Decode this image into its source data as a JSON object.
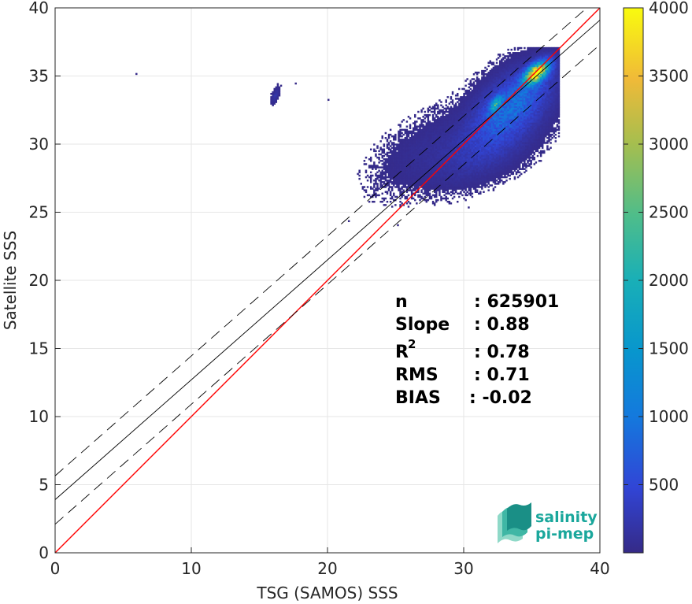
{
  "chart_data": {
    "type": "heatmap",
    "title": "",
    "xlabel": "TSG (SAMOS) SSS",
    "ylabel": "Satellite SSS",
    "xlim": [
      0,
      40
    ],
    "ylim": [
      0,
      40
    ],
    "xticks": [
      "0",
      "10",
      "20",
      "30",
      "40"
    ],
    "yticks": [
      "0",
      "5",
      "10",
      "15",
      "20",
      "25",
      "30",
      "35",
      "40"
    ],
    "grid": true,
    "colorbar": {
      "range": [
        0,
        4000
      ],
      "ticks": [
        "500",
        "1000",
        "1500",
        "2000",
        "2500",
        "3000",
        "3500",
        "4000"
      ],
      "colormap": "parula"
    },
    "lines": [
      {
        "type": "identity",
        "slope": 1.0,
        "intercept": 0.0,
        "color": "#ff0000",
        "style": "solid"
      },
      {
        "type": "regression",
        "slope": 0.88,
        "intercept": 3.9,
        "color": "#000000",
        "style": "solid"
      },
      {
        "type": "regression-upper",
        "slope": 0.88,
        "intercept": 5.65,
        "color": "#000000",
        "style": "dashed"
      },
      {
        "type": "regression-lower",
        "slope": 0.88,
        "intercept": 2.1,
        "color": "#000000",
        "style": "dashed"
      }
    ],
    "density_clusters": [
      {
        "x": 33.5,
        "y": 32.8,
        "sx": 1.5,
        "sy": 1.4,
        "peak": 900
      },
      {
        "x": 35.3,
        "y": 35.2,
        "sx": 0.5,
        "sy": 0.45,
        "peak": 3800
      },
      {
        "x": 32.3,
        "y": 32.9,
        "sx": 0.25,
        "sy": 0.3,
        "peak": 1600
      },
      {
        "x": 31.5,
        "y": 29.5,
        "sx": 1.8,
        "sy": 1.2,
        "peak": 250
      },
      {
        "x": 27.5,
        "y": 29.5,
        "sx": 2.0,
        "sy": 1.5,
        "peak": 80
      },
      {
        "x": 16.1,
        "y": 33.5,
        "sx": 0.15,
        "sy": 0.3,
        "peak": 200
      }
    ],
    "isolated_points": [
      {
        "x": 5.9,
        "y": 35.1
      },
      {
        "x": 17.6,
        "y": 34.4
      },
      {
        "x": 20.0,
        "y": 33.2
      },
      {
        "x": 25.1,
        "y": 24.0
      },
      {
        "x": 21.5,
        "y": 24.3
      },
      {
        "x": 30.3,
        "y": 25.3
      },
      {
        "x": 26.0,
        "y": 28.3
      },
      {
        "x": 24.5,
        "y": 26.8
      }
    ]
  },
  "stats": {
    "n_label": "n",
    "n_value": ": 625901",
    "slope_label": "Slope",
    "slope_value": ": 0.88",
    "r2_label": "R",
    "r2_sup": "2",
    "r2_value": ": 0.78",
    "rms_label": "RMS",
    "rms_value": ": 0.71",
    "bias_label": "BIAS",
    "bias_value": ": -0.02"
  },
  "logo": {
    "line1": "salinity",
    "line2": "pi-mep",
    "color": "#1aa79c"
  }
}
